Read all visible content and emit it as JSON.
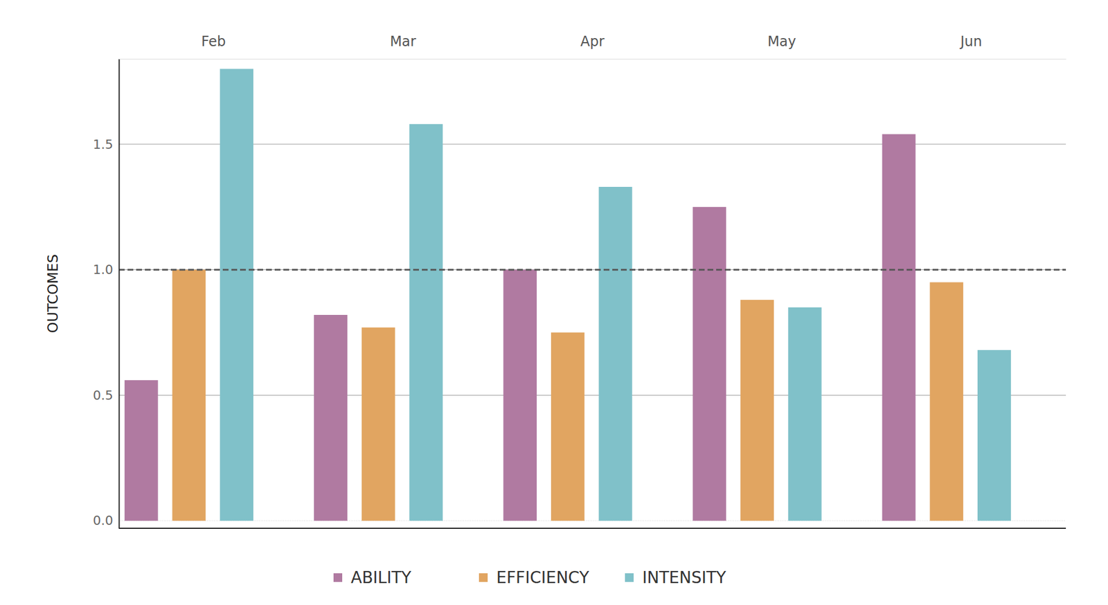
{
  "chart_data": {
    "type": "bar",
    "y_label": "OUTCOMES",
    "categories": [
      "Feb",
      "Mar",
      "Apr",
      "May",
      "Jun"
    ],
    "series": [
      {
        "name": "ABILITY",
        "color": "#b07aa1",
        "values": [
          0.56,
          0.82,
          1.0,
          1.25,
          1.54
        ]
      },
      {
        "name": "EFFICIENCY",
        "color": "#e1a561",
        "values": [
          1.0,
          0.77,
          0.75,
          0.88,
          0.95
        ]
      },
      {
        "name": "INTENSITY",
        "color": "#80c1c9",
        "values": [
          1.8,
          1.58,
          1.33,
          0.85,
          0.68
        ]
      }
    ],
    "ylim": [
      -0.03,
      1.84
    ],
    "yticks": [
      {
        "value": 0,
        "label": "0.0"
      },
      0.5,
      {
        "value": 1,
        "label": "1.0"
      },
      1.5
    ],
    "reference_line": 1,
    "grid": true,
    "legend": "bottom"
  }
}
